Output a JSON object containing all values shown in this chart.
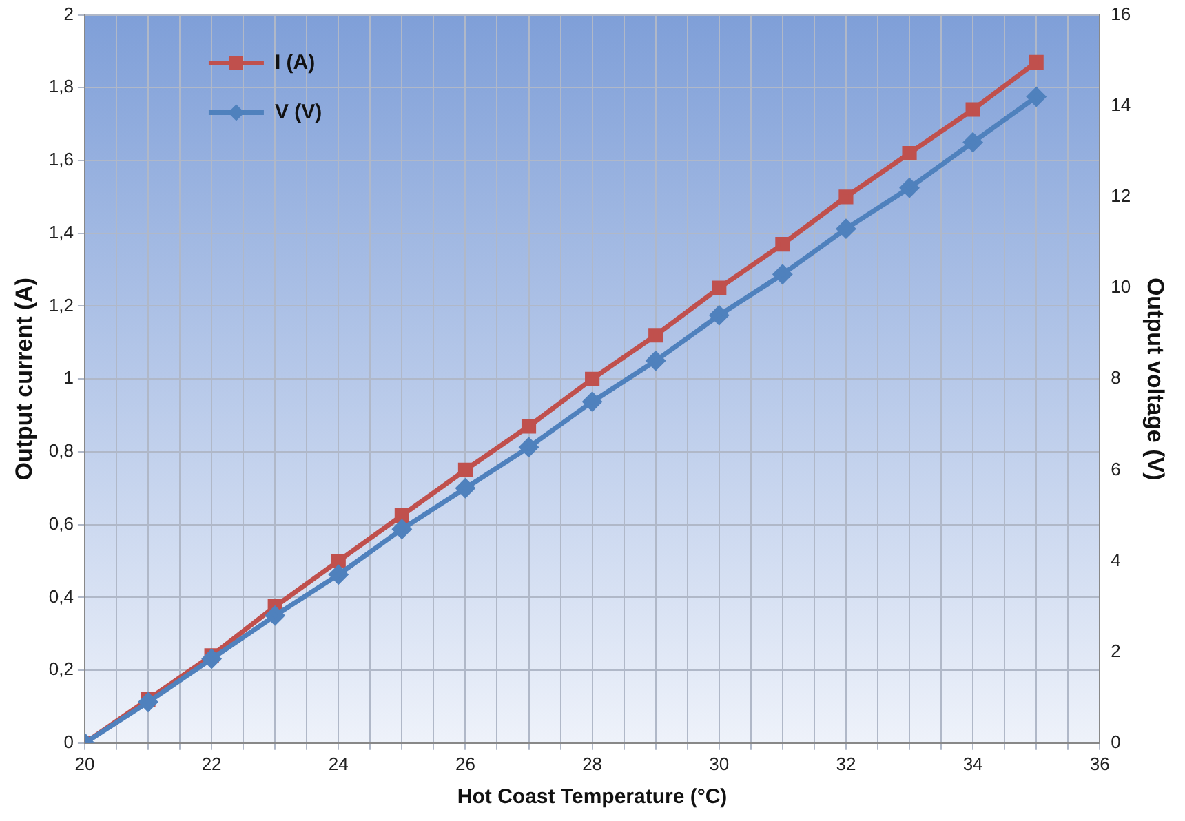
{
  "chart_data": {
    "type": "line",
    "xlabel": "Hot Coast Temperature (°C)",
    "ylabel": "Output current (A)",
    "y2label": "Output voltage (V)",
    "x": [
      20,
      21,
      22,
      23,
      24,
      25,
      26,
      27,
      28,
      29,
      30,
      31,
      32,
      33,
      34,
      35
    ],
    "series": [
      {
        "name": "I (A)",
        "color": "#c0504d",
        "marker": "square",
        "values": [
          0,
          0.12,
          0.24,
          0.375,
          0.5,
          0.625,
          0.75,
          0.87,
          1.0,
          1.12,
          1.25,
          1.37,
          1.5,
          1.62,
          1.74,
          1.87
        ]
      },
      {
        "name": "V (V)",
        "color": "#4f81bd",
        "marker": "diamond",
        "axis": "y2",
        "values": [
          0,
          0.9,
          1.85,
          2.8,
          3.7,
          4.7,
          5.6,
          6.5,
          7.5,
          8.4,
          9.4,
          10.3,
          11.3,
          12.2,
          13.2,
          14.2
        ]
      }
    ],
    "xlim": [
      20,
      36
    ],
    "xticks": [
      20,
      {
        "value": 20.5,
        "label": null
      },
      {
        "value": 21,
        "label": null
      },
      {
        "value": 21.5,
        "label": null
      },
      22,
      {
        "value": 22.5,
        "label": null
      },
      {
        "value": 23,
        "label": null
      },
      {
        "value": 23.5,
        "label": null
      },
      24,
      {
        "value": 24.5,
        "label": null
      },
      {
        "value": 25,
        "label": null
      },
      {
        "value": 25.5,
        "label": null
      },
      26,
      {
        "value": 26.5,
        "label": null
      },
      {
        "value": 27,
        "label": null
      },
      {
        "value": 27.5,
        "label": null
      },
      28,
      {
        "value": 28.5,
        "label": null
      },
      {
        "value": 29,
        "label": null
      },
      {
        "value": 29.5,
        "label": null
      },
      30,
      {
        "value": 30.5,
        "label": null
      },
      {
        "value": 31,
        "label": null
      },
      {
        "value": 31.5,
        "label": null
      },
      32,
      {
        "value": 32.5,
        "label": null
      },
      {
        "value": 33,
        "label": null
      },
      {
        "value": 33.5,
        "label": null
      },
      34,
      {
        "value": 34.5,
        "label": null
      },
      {
        "value": 35,
        "label": null
      },
      {
        "value": 35.5,
        "label": null
      },
      36
    ],
    "ylim": [
      0,
      2
    ],
    "yticks": [
      0,
      {
        "value": 0.2,
        "label": "0,2"
      },
      {
        "value": 0.4,
        "label": "0,4"
      },
      {
        "value": 0.6,
        "label": "0,6"
      },
      {
        "value": 0.8,
        "label": "0,8"
      },
      1,
      {
        "value": 1.2,
        "label": "1,2"
      },
      {
        "value": 1.4,
        "label": "1,4"
      },
      {
        "value": 1.6,
        "label": "1,6"
      },
      {
        "value": 1.8,
        "label": "1,8"
      },
      2
    ],
    "y2lim": [
      0,
      16
    ],
    "y2ticks": [
      0,
      2,
      4,
      6,
      8,
      10,
      12,
      14,
      16
    ],
    "grid": true,
    "legend": "top left",
    "line_style": "solid"
  }
}
